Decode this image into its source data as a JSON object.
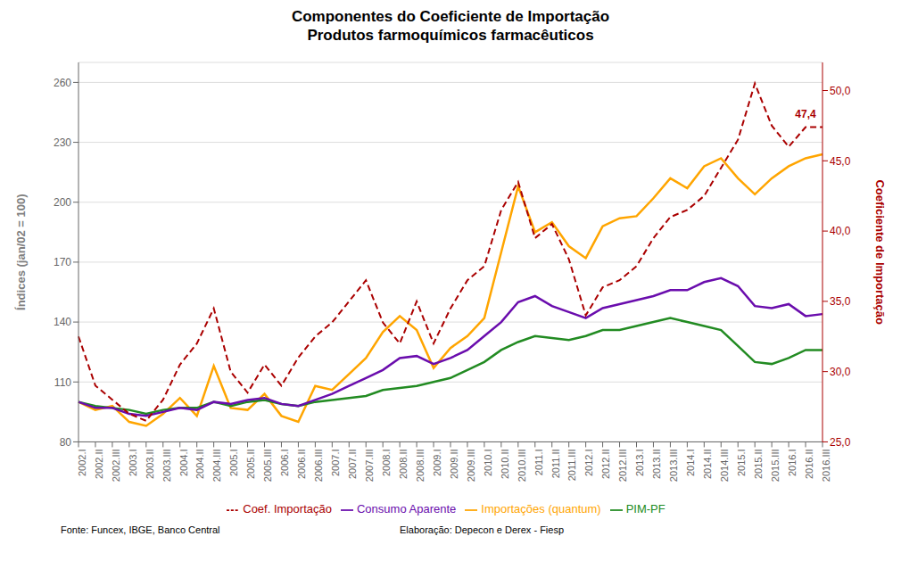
{
  "chart_data": {
    "type": "line",
    "title": "Componentes do Coeficiente de Importação",
    "subtitle": "Produtos farmoquímicos farmacêuticos",
    "y_label": "Índices (jan/02 = 100)",
    "y2_label": "Coeficiente de Importação",
    "ylim": [
      80,
      270
    ],
    "yticks": [
      80,
      110,
      140,
      170,
      200,
      230,
      260
    ],
    "y2lim": [
      25.0,
      52.0
    ],
    "y2ticks": [
      {
        "value": 25.0,
        "label": "25,0"
      },
      {
        "value": 30.0,
        "label": "30,0"
      },
      {
        "value": 35.0,
        "label": "35,0"
      },
      {
        "value": 40.0,
        "label": "40,0"
      },
      {
        "value": 45.0,
        "label": "45,0"
      },
      {
        "value": 50.0,
        "label": "50,0"
      }
    ],
    "grid": true,
    "legend": "bottom",
    "categories": [
      "2002.I",
      "2002.II",
      "2002.III",
      "2003.I",
      "2003.II",
      "2003.III",
      "2004.I",
      "2004.II",
      "2004.III",
      "2005.I",
      "2005.II",
      "2005.III",
      "2006.I",
      "2006.II",
      "2006.III",
      "2007.I",
      "2007.II",
      "2007.III",
      "2008.I",
      "2008.II",
      "2008.III",
      "2009.I",
      "2009.II",
      "2009.III",
      "2010.I",
      "2010.II",
      "2010.III",
      "2011.I",
      "2011.II",
      "2011.III",
      "2012.I",
      "2012.II",
      "2012.III",
      "2013.I",
      "2013.II",
      "2013.III",
      "2014.I",
      "2014.II",
      "2014.III",
      "2015.I",
      "2015.II",
      "2015.III",
      "2016.I",
      "2016.II",
      "2016.III"
    ],
    "series": [
      {
        "name": "Importações (quantum)",
        "color": "#FFA500",
        "line_style": "solid",
        "values": [
          100,
          96,
          98,
          90,
          88,
          94,
          102,
          93,
          118,
          97,
          96,
          104,
          93,
          90,
          108,
          106,
          114,
          122,
          135,
          143,
          136,
          117,
          127,
          133,
          142,
          175,
          208,
          185,
          190,
          178,
          172,
          188,
          192,
          193,
          202,
          212,
          207,
          218,
          222,
          212,
          204,
          212,
          218,
          222,
          224
        ]
      },
      {
        "name": "PIM-PF",
        "color": "#228B22",
        "line_style": "solid",
        "values": [
          100,
          98,
          97,
          96,
          94,
          96,
          97,
          97,
          100,
          98,
          100,
          101,
          99,
          98,
          100,
          101,
          102,
          103,
          106,
          107,
          108,
          110,
          112,
          116,
          120,
          126,
          130,
          133,
          132,
          131,
          133,
          136,
          136,
          138,
          140,
          142,
          140,
          138,
          136,
          128,
          120,
          119,
          122,
          126,
          126
        ]
      },
      {
        "name": "Consumo Aparente",
        "color": "#6A0DAD",
        "line_style": "solid",
        "values": [
          100,
          97,
          97,
          94,
          93,
          95,
          97,
          96,
          100,
          99,
          101,
          102,
          99,
          98,
          101,
          104,
          108,
          112,
          116,
          122,
          123,
          119,
          122,
          126,
          133,
          140,
          150,
          153,
          148,
          145,
          142,
          147,
          149,
          151,
          153,
          156,
          156,
          160,
          162,
          158,
          148,
          147,
          149,
          143,
          144
        ]
      },
      {
        "name": "Coef. Importação",
        "color": "#AA0000",
        "line_style": "dashed",
        "axis": "y2",
        "values": [
          32.5,
          29.0,
          28.0,
          27.0,
          26.5,
          28.0,
          30.5,
          32.0,
          34.5,
          30.0,
          28.5,
          30.5,
          29.0,
          31.0,
          32.5,
          33.5,
          35.0,
          36.5,
          33.5,
          32.0,
          35.0,
          32.0,
          34.5,
          36.5,
          37.5,
          41.5,
          43.5,
          39.5,
          40.5,
          38.0,
          34.0,
          36.0,
          36.5,
          37.5,
          39.5,
          41.0,
          41.5,
          42.5,
          44.5,
          46.5,
          50.5,
          47.5,
          46.0,
          47.4,
          47.4
        ]
      }
    ],
    "annotations": [
      {
        "text": "47,4",
        "x": "2016.II",
        "y": 47.4,
        "axis": "y2"
      },
      {
        "text": "Fonte: Funcex, IBGE, Banco Central"
      },
      {
        "text": "Elaboração: Depecon e Derex - Fiesp"
      }
    ]
  }
}
